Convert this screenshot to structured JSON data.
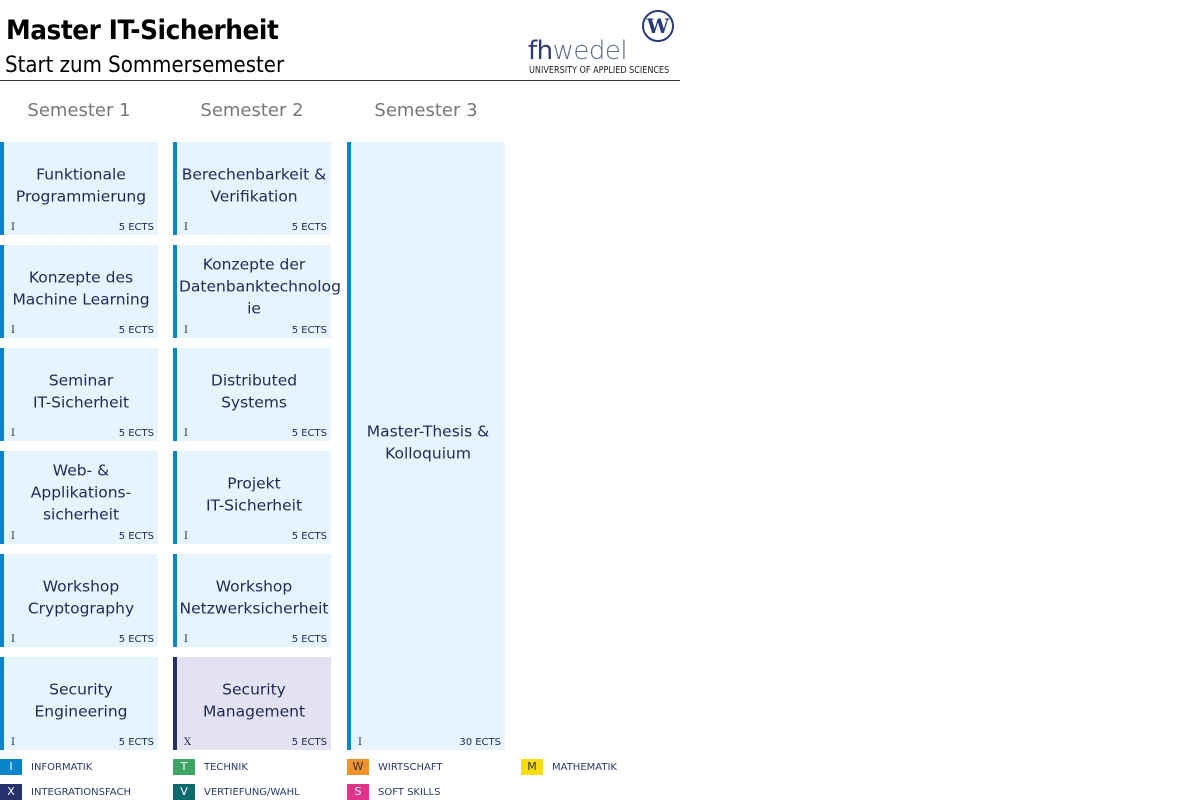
{
  "header": {
    "title": "Master IT-Sicherheit",
    "subtitle": "Start zum Sommersemester",
    "logo_text": "fhwedel",
    "logo_sub": "UNIVERSITY OF APPLIED SCIENCES"
  },
  "semesters": [
    {
      "label": "Semester 1",
      "modules": [
        {
          "name": "Funktionale\nProgrammierung",
          "cat": "I",
          "ects": "5 ECTS"
        },
        {
          "name": "Konzepte des\nMachine Learning",
          "cat": "I",
          "ects": "5 ECTS"
        },
        {
          "name": "Seminar\nIT-Sicherheit",
          "cat": "I",
          "ects": "5 ECTS"
        },
        {
          "name": "Web- & Applikations-\nsicherheit",
          "cat": "I",
          "ects": "5 ECTS"
        },
        {
          "name": "Workshop\nCryptography",
          "cat": "I",
          "ects": "5 ECTS"
        },
        {
          "name": "Security Engineering",
          "cat": "I",
          "ects": "5 ECTS"
        }
      ]
    },
    {
      "label": "Semester 2",
      "modules": [
        {
          "name": "Berechenbarkeit &\nVerifikation",
          "cat": "I",
          "ects": "5 ECTS"
        },
        {
          "name": "Konzepte der\nDatenbanktechnolog\nie",
          "cat": "I",
          "ects": "5 ECTS"
        },
        {
          "name": "Distributed Systems",
          "cat": "I",
          "ects": "5 ECTS"
        },
        {
          "name": "Projekt\nIT-Sicherheit",
          "cat": "I",
          "ects": "5 ECTS"
        },
        {
          "name": "Workshop\nNetzwerksicherheit",
          "cat": "I",
          "ects": "5 ECTS"
        },
        {
          "name": "Security\nManagement",
          "cat": "X",
          "ects": "5 ECTS"
        }
      ]
    },
    {
      "label": "Semester 3",
      "modules": [
        {
          "name": "Master-Thesis &\nKolloquium",
          "cat": "I",
          "ects": "30 ECTS"
        }
      ]
    }
  ],
  "legend": [
    {
      "code": "I",
      "label": "INFORMATIK",
      "color": "#0a84c9"
    },
    {
      "code": "T",
      "label": "TECHNIK",
      "color": "#3ea565"
    },
    {
      "code": "W",
      "label": "WIRTSCHAFT",
      "color": "#f0922a"
    },
    {
      "code": "M",
      "label": "MATHEMATIK",
      "color": "#f7dd10"
    },
    {
      "code": "X",
      "label": "INTEGRATIONSFACH",
      "color": "#26306a"
    },
    {
      "code": "V",
      "label": "VERTIEFUNG/WAHL",
      "color": "#0f6a6e"
    },
    {
      "code": "S",
      "label": "SOFT SKILLS",
      "color": "#e0338a"
    }
  ]
}
